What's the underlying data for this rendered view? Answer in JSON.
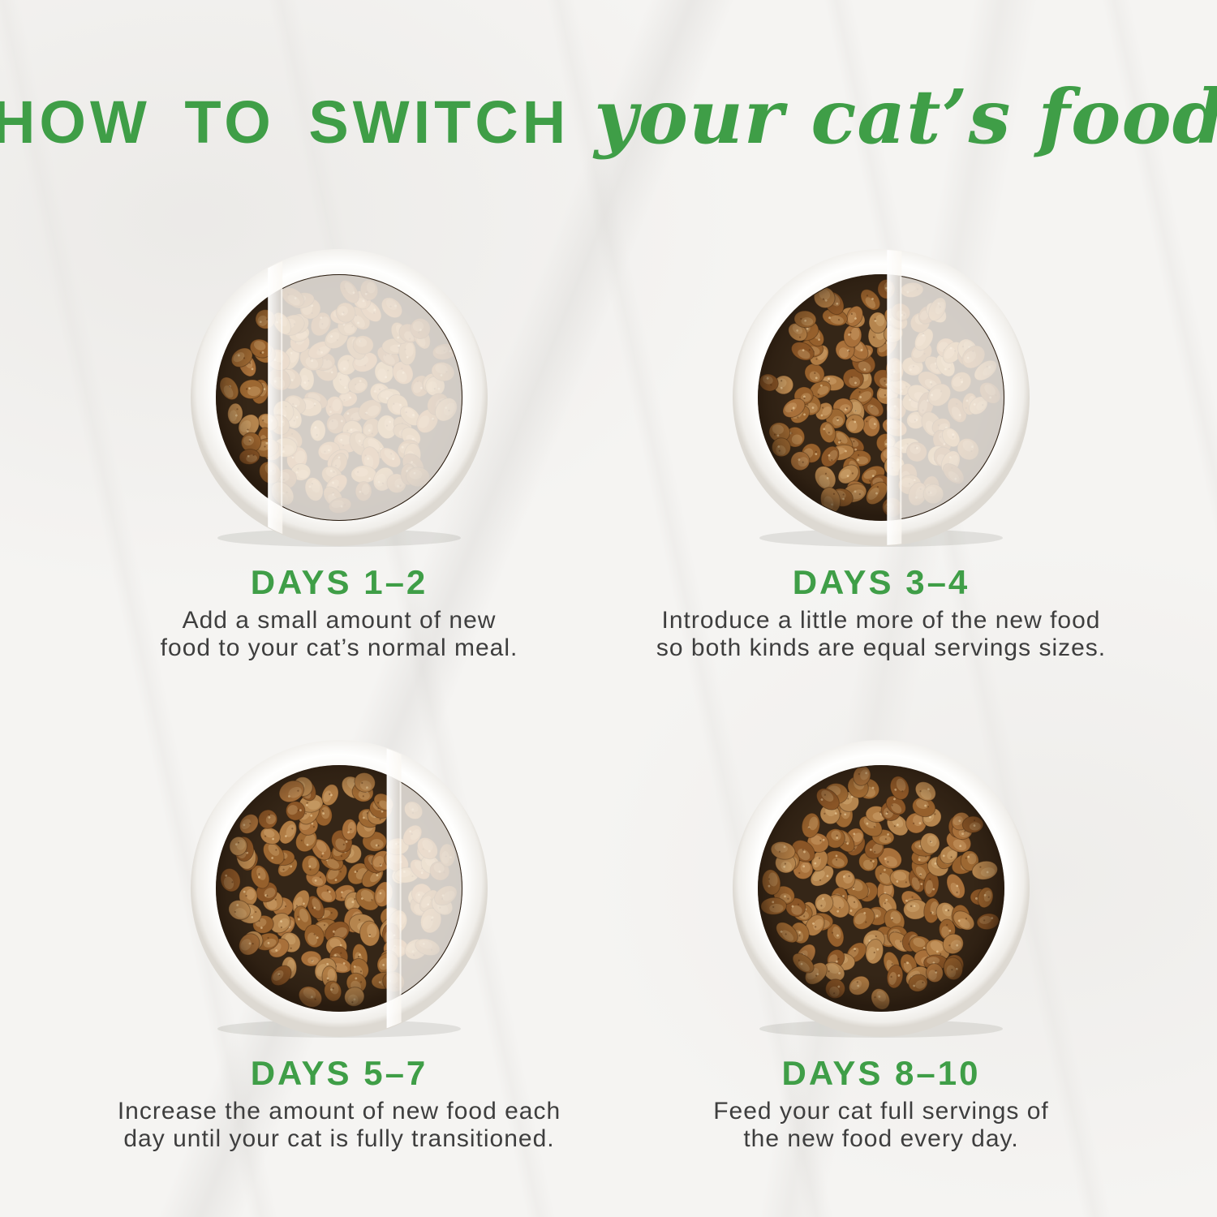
{
  "title": {
    "main": "HOW TO SWITCH",
    "script": "your cat’s food"
  },
  "colors": {
    "green": "#3f9e47",
    "body_text": "#3e3e3e",
    "background": "#f5f4f2",
    "bowl_rim": "#f7f6f3",
    "bowl_interior_dark": "#352617",
    "kibble_palette": [
      "#a8703a",
      "#96602c",
      "#b07c44",
      "#8a5526",
      "#9d6832",
      "#b5854e"
    ],
    "old_food_fade_overlay": "rgba(251,248,243,0.80)",
    "divider_band": "rgba(255,255,255,0.97)"
  },
  "steps": [
    {
      "id": "days-1-2",
      "heading": "DAYS 1–2",
      "desc_lines": [
        "Add a small amount of new",
        "food to your cat’s normal meal."
      ],
      "new_food_percent": 26
    },
    {
      "id": "days-3-4",
      "heading": "DAYS 3–4",
      "desc_lines": [
        "Introduce a little more of the new food",
        "so both kinds are equal servings sizes."
      ],
      "new_food_percent": 52
    },
    {
      "id": "days-5-7",
      "heading": "DAYS 5–7",
      "desc_lines": [
        "Increase the amount of new food each",
        "day until your cat is fully transitioned."
      ],
      "new_food_percent": 66
    },
    {
      "id": "days-8-10",
      "heading": "DAYS 8–10",
      "desc_lines": [
        "Feed your cat full servings of",
        "the new food every day."
      ],
      "new_food_percent": 100
    }
  ]
}
